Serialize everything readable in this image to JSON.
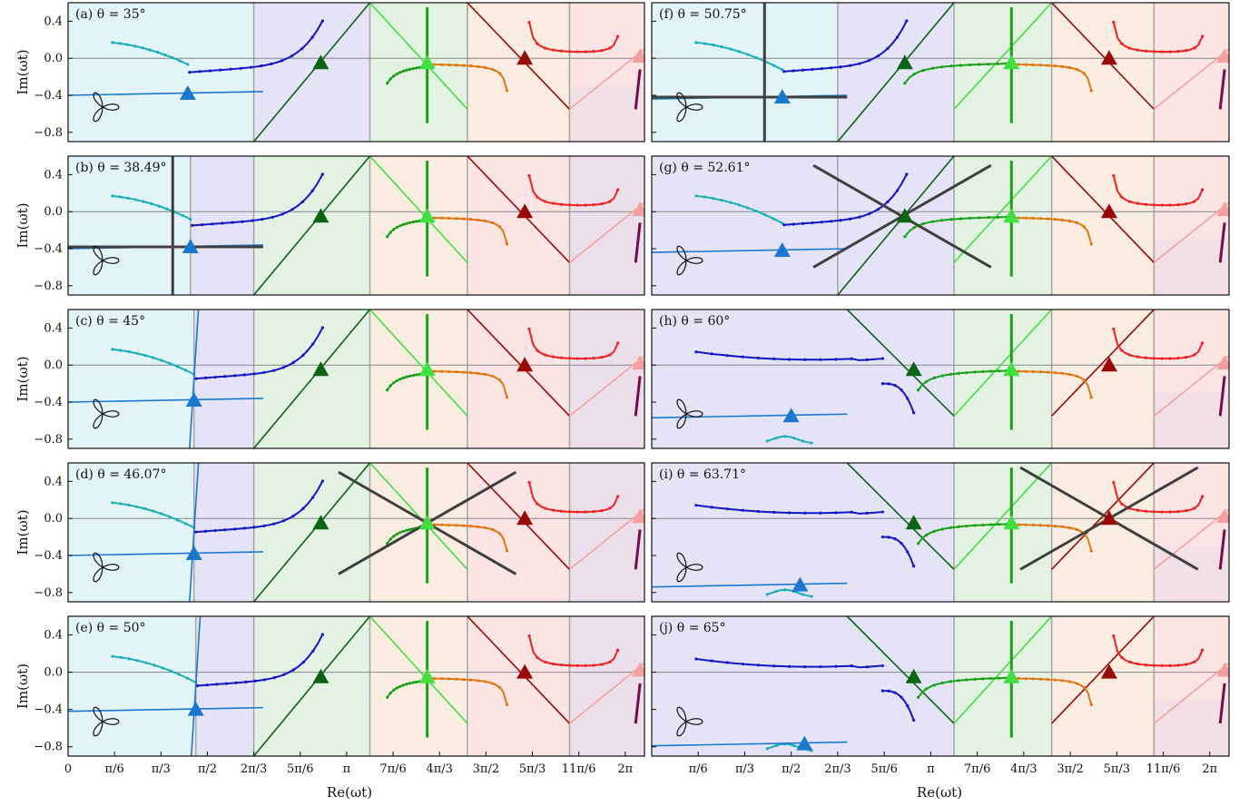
{
  "figure": {
    "xlabel": "Re(ωt)",
    "ylabel": "Im(ωt)",
    "x_tick_labels_left": [
      "0",
      "π/6",
      "π/3",
      "π/2",
      "2π/3",
      "5π/6",
      "π",
      "7π/6",
      "4π/3",
      "3π/2",
      "5π/3",
      "11π/6",
      "2π"
    ],
    "x_tick_labels_right": [
      "π/6",
      "π/3",
      "π/2",
      "2π/3",
      "5π/6",
      "π",
      "7π/6",
      "4π/3",
      "3π/2",
      "5π/3",
      "11π/6",
      "2π"
    ],
    "y_tick_labels": [
      "0.4",
      "0.0",
      "−0.4",
      "−0.8"
    ]
  },
  "colors": {
    "cyan": "#1ab0b8",
    "blue": "#1414c8",
    "green": "#18a018",
    "dark_green": "#0a6414",
    "light_green": "#40e040",
    "orange": "#e07810",
    "red": "#f02020",
    "dark_red": "#9a0808",
    "pink": "#f4a0a0",
    "purple": "#7a0a4a",
    "marker_blue": "#1a78d0",
    "black_line": "#404040",
    "bg_cyan": "#e3f4f6",
    "bg_blue": "#e4e4f6",
    "bg_green": "#e4f2e4",
    "bg_orange": "#f9ece0",
    "bg_red": "#fbe4e4",
    "bg_purple": "#ebe0ea"
  },
  "chart_data": [
    {
      "type": "line",
      "panel": "(a)",
      "title": "(a) θ = 35°",
      "xlim": [
        0,
        6.5
      ],
      "ylim": [
        -0.9,
        0.6
      ],
      "region_bounds": [
        2.094,
        3.403,
        4.503,
        5.655
      ],
      "blue_marker": [
        1.35,
        -0.38
      ],
      "black_saddle": null
    },
    {
      "type": "line",
      "panel": "(b)",
      "title": "(b) θ = 38.49°",
      "xlim": [
        0,
        6.5
      ],
      "ylim": [
        -0.9,
        0.6
      ],
      "region_bounds": [
        1.38,
        2.094,
        3.403,
        4.503,
        5.655
      ],
      "blue_marker": [
        1.38,
        -0.38
      ],
      "black_saddle": [
        1.38,
        -0.38
      ]
    },
    {
      "type": "line",
      "panel": "(c)",
      "title": "(c) θ = 45°",
      "xlim": [
        0,
        6.5
      ],
      "ylim": [
        -0.9,
        0.6
      ],
      "region_bounds": [
        1.42,
        2.094,
        3.403,
        4.503,
        5.655
      ],
      "blue_marker": [
        1.42,
        -0.38
      ],
      "black_saddle": null
    },
    {
      "type": "line",
      "panel": "(d)",
      "title": "(d) θ = 46.07°",
      "xlim": [
        0,
        6.5
      ],
      "ylim": [
        -0.9,
        0.6
      ],
      "region_bounds": [
        1.42,
        2.094,
        3.403,
        4.503,
        5.655
      ],
      "blue_marker": [
        1.42,
        -0.38
      ],
      "black_saddle": [
        4.05,
        -0.05
      ]
    },
    {
      "type": "line",
      "panel": "(e)",
      "title": "(e) θ = 50°",
      "xlim": [
        0,
        6.5
      ],
      "ylim": [
        -0.9,
        0.6
      ],
      "region_bounds": [
        1.44,
        2.094,
        3.403,
        4.503,
        5.655
      ],
      "blue_marker": [
        1.44,
        -0.4
      ],
      "black_saddle": null
    },
    {
      "type": "line",
      "panel": "(f)",
      "title": "(f) θ = 50.75°",
      "xlim": [
        0,
        6.5
      ],
      "ylim": [
        -0.9,
        0.6
      ],
      "region_bounds": [
        2.094,
        3.403,
        4.503,
        5.655
      ],
      "blue_marker": [
        1.47,
        -0.42
      ],
      "black_saddle": [
        1.47,
        -0.42
      ]
    },
    {
      "type": "line",
      "panel": "(g)",
      "title": "(g) θ = 52.61°",
      "xlim": [
        0,
        6.5
      ],
      "ylim": [
        -0.9,
        0.6
      ],
      "region_bounds": [
        2.094,
        3.403,
        4.503,
        5.655
      ],
      "blue_marker": [
        1.47,
        -0.42
      ],
      "black_saddle": [
        2.82,
        -0.05
      ]
    },
    {
      "type": "line",
      "panel": "(h)",
      "title": "(h) θ = 60°",
      "xlim": [
        0,
        6.5
      ],
      "ylim": [
        -0.9,
        0.6
      ],
      "region_bounds": [
        3.403,
        4.503,
        5.655
      ],
      "blue_marker": [
        1.57,
        -0.55
      ],
      "black_saddle": null
    },
    {
      "type": "line",
      "panel": "(i)",
      "title": "(i) θ = 63.71°",
      "xlim": [
        0,
        6.5
      ],
      "ylim": [
        -0.9,
        0.6
      ],
      "region_bounds": [
        3.403,
        4.503,
        5.655
      ],
      "blue_marker": [
        1.67,
        -0.72
      ],
      "black_saddle": [
        5.15,
        0.0
      ]
    },
    {
      "type": "line",
      "panel": "(j)",
      "title": "(j) θ = 65°",
      "xlim": [
        0,
        6.5
      ],
      "ylim": [
        -0.9,
        0.6
      ],
      "region_bounds": [
        3.403,
        4.503,
        5.655
      ],
      "blue_marker": [
        1.72,
        -0.77
      ],
      "black_saddle": null
    }
  ]
}
